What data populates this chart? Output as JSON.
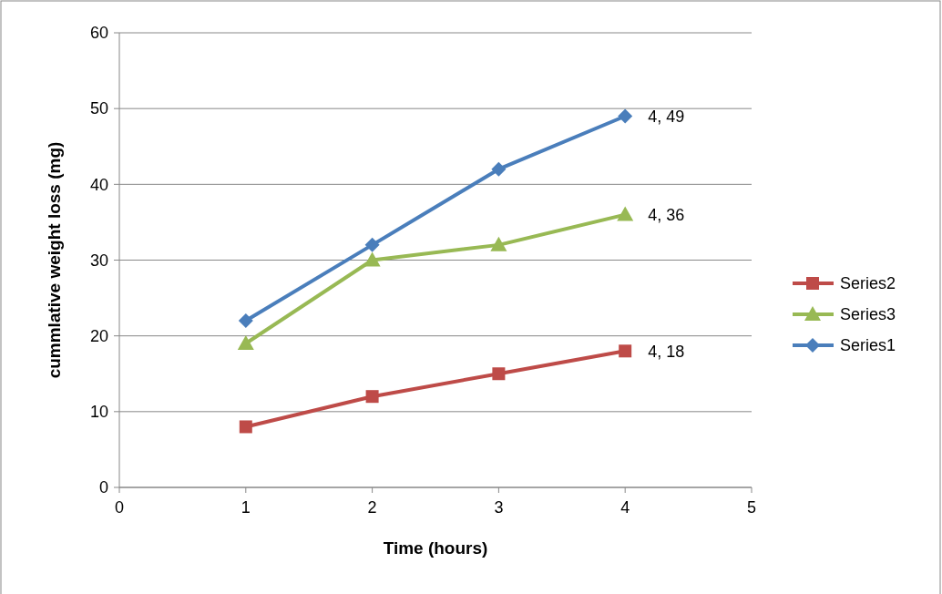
{
  "chart_data": {
    "type": "line",
    "xlabel": "Time (hours)",
    "ylabel": "cummlative weight loss  (mg)",
    "x": [
      1,
      2,
      3,
      4
    ],
    "series": [
      {
        "name": "Series2",
        "color": "#be4b48",
        "marker": "square",
        "values": [
          8,
          12,
          15,
          18
        ],
        "value_labels": [
          null,
          null,
          null,
          "4, 18"
        ]
      },
      {
        "name": "Series3",
        "color": "#98b954",
        "marker": "triangle",
        "values": [
          19,
          30,
          32,
          36
        ],
        "value_labels": [
          null,
          null,
          null,
          "4, 36"
        ]
      },
      {
        "name": "Series1",
        "color": "#4a7ebb",
        "marker": "diamond",
        "values": [
          22,
          32,
          42,
          49
        ],
        "value_labels": [
          null,
          null,
          null,
          "4, 49"
        ]
      }
    ],
    "xlim": [
      0,
      5
    ],
    "xticks": [
      0,
      1,
      2,
      3,
      4,
      5
    ],
    "ylim": [
      0,
      60
    ],
    "yticks": [
      0,
      10,
      20,
      30,
      40,
      50,
      60
    ],
    "grid": "y",
    "legend": "right",
    "line_style": "solid"
  }
}
